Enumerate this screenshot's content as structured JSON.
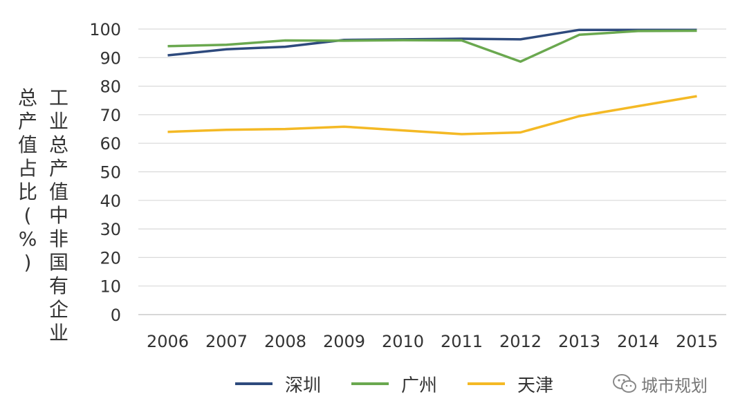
{
  "chart_data": {
    "type": "line",
    "ylabel_line1": "工业总产值中非国有企业",
    "ylabel_line2": "总产值占比(%)",
    "ylim": [
      0,
      100
    ],
    "yticks": [
      0,
      10,
      20,
      30,
      40,
      50,
      60,
      70,
      80,
      90,
      100
    ],
    "grid": true,
    "legend_position": "bottom",
    "categories": [
      "2006",
      "2007",
      "2008",
      "2009",
      "2010",
      "2011",
      "2012",
      "2013",
      "2014",
      "2015"
    ],
    "series": [
      {
        "name": "深圳",
        "color": "#2e4a7d",
        "values": [
          90.8,
          92.9,
          93.8,
          96.2,
          96.4,
          96.6,
          96.4,
          99.7,
          99.7,
          99.7
        ]
      },
      {
        "name": "广州",
        "color": "#6aa84f",
        "values": [
          94.0,
          94.5,
          96.0,
          95.9,
          96.1,
          96.0,
          88.6,
          98.0,
          99.3,
          99.4
        ]
      },
      {
        "name": "天津",
        "color": "#f4b925",
        "values": [
          64.0,
          64.7,
          65.0,
          65.8,
          64.5,
          63.2,
          63.8,
          69.5,
          73.0,
          76.5
        ]
      }
    ]
  },
  "watermark": {
    "text": "城市规划",
    "icon": "wechat-icon"
  }
}
